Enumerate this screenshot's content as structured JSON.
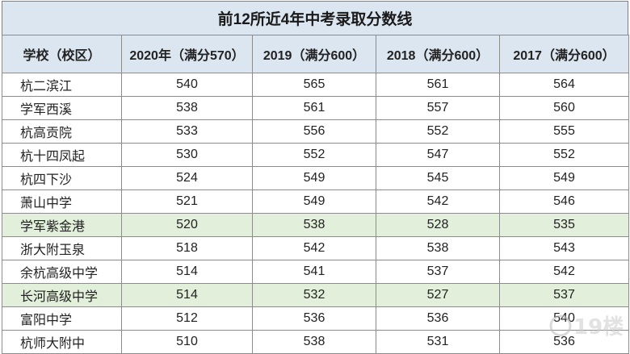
{
  "title": "前12所近4年中考录取分数线",
  "columns": [
    "学校（校区）",
    "2020年（满分570）",
    "2019（满分600）",
    "2018（满分600）",
    "2017（满分600）"
  ],
  "rows": [
    {
      "school": "杭二滨江",
      "s2020": "540",
      "s2019": "565",
      "s2018": "561",
      "s2017": "564",
      "highlight": false
    },
    {
      "school": "学军西溪",
      "s2020": "538",
      "s2019": "561",
      "s2018": "557",
      "s2017": "560",
      "highlight": false
    },
    {
      "school": "杭高贡院",
      "s2020": "533",
      "s2019": "556",
      "s2018": "552",
      "s2017": "555",
      "highlight": false
    },
    {
      "school": "杭十四凤起",
      "s2020": "530",
      "s2019": "552",
      "s2018": "547",
      "s2017": "552",
      "highlight": false
    },
    {
      "school": "杭四下沙",
      "s2020": "524",
      "s2019": "549",
      "s2018": "545",
      "s2017": "549",
      "highlight": false
    },
    {
      "school": "萧山中学",
      "s2020": "521",
      "s2019": "549",
      "s2018": "542",
      "s2017": "546",
      "highlight": false
    },
    {
      "school": "学军紫金港",
      "s2020": "520",
      "s2019": "538",
      "s2018": "528",
      "s2017": "535",
      "highlight": true
    },
    {
      "school": "浙大附玉泉",
      "s2020": "518",
      "s2019": "542",
      "s2018": "538",
      "s2017": "543",
      "highlight": false
    },
    {
      "school": "余杭高级中学",
      "s2020": "514",
      "s2019": "541",
      "s2018": "537",
      "s2017": "542",
      "highlight": false
    },
    {
      "school": "长河高级中学",
      "s2020": "514",
      "s2019": "532",
      "s2018": "527",
      "s2017": "537",
      "highlight": true
    },
    {
      "school": "富阳中学",
      "s2020": "512",
      "s2019": "536",
      "s2018": "536",
      "s2017": "540",
      "highlight": false
    },
    {
      "school": "杭师大附中",
      "s2020": "510",
      "s2019": "538",
      "s2018": "531",
      "s2017": "536",
      "highlight": false
    }
  ],
  "colors": {
    "header_bg": "#dce6f1",
    "highlight_bg": "#e2efda",
    "border": "#8c8c8c"
  },
  "watermark": {
    "icon": "19lou-logo",
    "text": "19楼"
  }
}
